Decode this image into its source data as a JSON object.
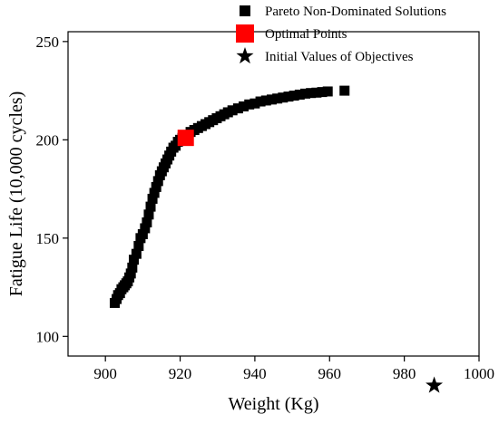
{
  "chart_data": {
    "type": "scatter",
    "xlabel": "Weight (Kg)",
    "ylabel": "Fatigue Life (10,000 cycles)",
    "xlim": [
      890,
      1000
    ],
    "ylim": [
      90,
      255
    ],
    "x_ticks": [
      900,
      920,
      940,
      960,
      980,
      1000
    ],
    "y_ticks": [
      100,
      150,
      200,
      250
    ],
    "grid": false,
    "legend_position": "top-right",
    "series": [
      {
        "name": "Pareto Non-Dominated Solutions",
        "marker": "square",
        "color": "#000000",
        "points": [
          [
            902.5,
            117
          ],
          [
            903.0,
            119
          ],
          [
            903.4,
            121
          ],
          [
            903.9,
            122
          ],
          [
            904.3,
            124
          ],
          [
            904.8,
            125
          ],
          [
            905.2,
            126
          ],
          [
            905.6,
            127
          ],
          [
            906.0,
            128
          ],
          [
            906.4,
            130
          ],
          [
            906.8,
            132
          ],
          [
            907.2,
            135
          ],
          [
            907.6,
            139
          ],
          [
            908.3,
            142
          ],
          [
            908.9,
            146
          ],
          [
            909.4,
            150
          ],
          [
            910.0,
            152
          ],
          [
            910.6,
            155
          ],
          [
            911.1,
            158
          ],
          [
            911.6,
            162
          ],
          [
            912.1,
            166
          ],
          [
            912.6,
            170
          ],
          [
            913.1,
            173
          ],
          [
            913.6,
            176
          ],
          [
            914.1,
            179
          ],
          [
            914.6,
            182
          ],
          [
            915.1,
            184
          ],
          [
            915.6,
            186
          ],
          [
            916.1,
            188
          ],
          [
            916.6,
            190
          ],
          [
            917.1,
            192
          ],
          [
            917.6,
            194
          ],
          [
            918.2,
            196
          ],
          [
            918.8,
            197
          ],
          [
            919.4,
            199
          ],
          [
            920.0,
            200
          ],
          [
            920.6,
            201
          ],
          [
            921.8,
            202
          ],
          [
            922.8,
            204
          ],
          [
            923.8,
            205
          ],
          [
            924.8,
            206
          ],
          [
            925.8,
            207
          ],
          [
            926.8,
            208
          ],
          [
            927.8,
            209
          ],
          [
            928.8,
            210
          ],
          [
            929.8,
            211
          ],
          [
            930.8,
            212
          ],
          [
            931.8,
            213
          ],
          [
            932.8,
            214
          ],
          [
            934.0,
            215
          ],
          [
            935.5,
            216
          ],
          [
            937.0,
            217
          ],
          [
            938.5,
            218
          ],
          [
            940.0,
            218.5
          ],
          [
            941.5,
            219.5
          ],
          [
            943.0,
            220
          ],
          [
            944.5,
            220.5
          ],
          [
            946.0,
            221
          ],
          [
            947.5,
            221.5
          ],
          [
            949.0,
            222
          ],
          [
            950.5,
            222.5
          ],
          [
            952.0,
            223
          ],
          [
            953.5,
            223.5
          ],
          [
            955.0,
            223.8
          ],
          [
            956.5,
            224
          ],
          [
            958.0,
            224.3
          ],
          [
            959.5,
            224.6
          ],
          [
            964.0,
            225
          ]
        ]
      },
      {
        "name": "Optimal Points",
        "marker": "square",
        "color": "#ff0000",
        "points": [
          [
            921.5,
            201
          ]
        ]
      },
      {
        "name": "Initial Values of Objectives",
        "marker": "star",
        "color": "#000000",
        "points": [
          [
            988,
            75
          ]
        ]
      }
    ]
  }
}
